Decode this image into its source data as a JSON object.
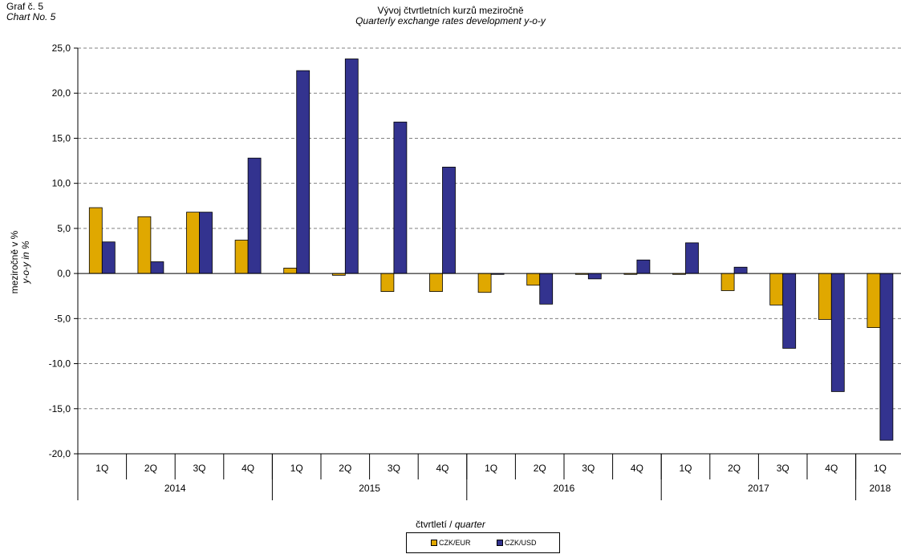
{
  "corner": {
    "line1": "Graf č. 5",
    "line2": "Chart No. 5"
  },
  "header": {
    "title": "Vývoj čtvrtletních kurzů meziročně",
    "subtitle": "Quarterly exchange rates development  y-o-y"
  },
  "axis": {
    "ylabel_cs": "meziročně v %",
    "ylabel_en": "y-o-y in %",
    "xlabel_cs": "čtvrtletí",
    "xlabel_sep": " / ",
    "xlabel_en": "quarter"
  },
  "colors": {
    "eur": "#E0A800",
    "usd": "#33338F",
    "axis": "#000000",
    "grid": "#808080"
  },
  "chart_data": {
    "type": "bar",
    "title": "Vývoj čtvrtletních kurzů meziročně",
    "subtitle": "Quarterly exchange rates development  y-o-y",
    "ylabel": "meziročně v % / y-o-y in %",
    "xlabel": "čtvrtletí / quarter",
    "ylim": [
      -20,
      25
    ],
    "yticks": [
      "25,0",
      "20,0",
      "15,0",
      "10,0",
      "5,0",
      "0,0",
      "-5,0",
      "-10,0",
      "-15,0",
      "-20,0"
    ],
    "grid": true,
    "legend_position": "bottom-center",
    "categories": [
      "1Q",
      "2Q",
      "3Q",
      "4Q",
      "1Q",
      "2Q",
      "3Q",
      "4Q",
      "1Q",
      "2Q",
      "3Q",
      "4Q",
      "1Q",
      "2Q",
      "3Q",
      "4Q",
      "1Q"
    ],
    "years": [
      {
        "label": "2014",
        "count": 4
      },
      {
        "label": "2015",
        "count": 4
      },
      {
        "label": "2016",
        "count": 4
      },
      {
        "label": "2017",
        "count": 4
      },
      {
        "label": "2018",
        "count": 1
      }
    ],
    "series": [
      {
        "name": "CZK/EUR",
        "values": [
          7.3,
          6.3,
          6.8,
          3.7,
          0.6,
          -0.2,
          -2.0,
          -2.0,
          -2.1,
          -1.3,
          -0.1,
          -0.1,
          -0.1,
          -1.9,
          -3.5,
          -5.1,
          -6.0
        ]
      },
      {
        "name": "CZK/USD",
        "values": [
          3.5,
          1.3,
          6.8,
          12.8,
          22.5,
          23.8,
          16.8,
          11.8,
          -0.1,
          -3.4,
          -0.6,
          1.5,
          3.4,
          0.7,
          -8.3,
          -13.1,
          -18.5
        ]
      }
    ]
  }
}
